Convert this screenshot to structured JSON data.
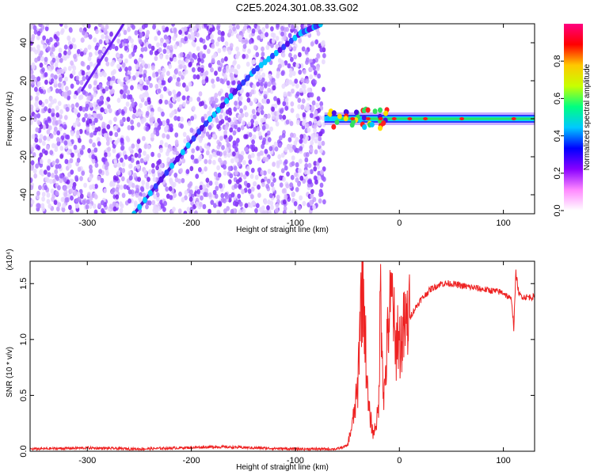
{
  "title": "C2E5.2024.301.08.33.G02",
  "chart_data": [
    {
      "type": "heatmap",
      "title": "C2E5.2024.301.08.33.G02",
      "xlabel": "Height of straight line (km)",
      "ylabel": "Frequency (Hz)",
      "xlim": [
        -355,
        130
      ],
      "ylim": [
        -50,
        50
      ],
      "x_ticks": [
        -300,
        -200,
        -100,
        0,
        100
      ],
      "y_ticks": [
        -40,
        -20,
        0,
        20,
        40
      ],
      "noise_region_x": [
        -355,
        -72
      ],
      "diagonal_trace_points": [
        [
          -255,
          -50
        ],
        [
          -190,
          -5
        ],
        [
          -140,
          25
        ],
        [
          -95,
          45
        ],
        [
          -75,
          50
        ]
      ],
      "diagonal_trace_2_points": [
        [
          -305,
          15
        ],
        [
          -265,
          50
        ]
      ],
      "stable_band": {
        "x_start": -72,
        "x_end": 130,
        "frequency": 0
      },
      "colorbar": {
        "label": "Normalized spectral amplitude",
        "range": [
          0,
          1
        ],
        "ticks": [
          "0.0",
          "0.2",
          "0.4",
          "0.6",
          "0.8"
        ],
        "colors": [
          "#ffffff",
          "#ff88ff",
          "#8800ff",
          "#0000ff",
          "#00c8ff",
          "#00ff80",
          "#c8ff00",
          "#ffc800",
          "#ff0000",
          "#ff0080"
        ]
      }
    },
    {
      "type": "line",
      "xlabel": "Height of straight line (km)",
      "ylabel": "SNR (10 * v/v)",
      "y_multiplier": "(x10⁴)",
      "xlim": [
        -355,
        130
      ],
      "ylim": [
        0,
        1.7
      ],
      "x_ticks": [
        -300,
        -200,
        -100,
        0,
        100
      ],
      "y_ticks": [
        "0.0",
        "0.5",
        "1.0",
        "1.5"
      ],
      "color": "#ee2222",
      "x": [
        -355,
        -300,
        -250,
        -175,
        -100,
        -60,
        -50,
        -45,
        -40,
        -38,
        -35,
        -32,
        -30,
        -25,
        -20,
        -18,
        -15,
        -12,
        -10,
        -6,
        -4,
        -2,
        0,
        5,
        10,
        20,
        30,
        40,
        50,
        60,
        80,
        100,
        108,
        110,
        112,
        115,
        120,
        130
      ],
      "values": [
        0.02,
        0.03,
        0.02,
        0.04,
        0.02,
        0.02,
        0.05,
        0.25,
        0.55,
        1.2,
        1.55,
        0.85,
        0.4,
        0.15,
        0.35,
        1.5,
        0.45,
        0.9,
        1.2,
        1.4,
        0.8,
        1.1,
        0.95,
        1.1,
        1.2,
        1.35,
        1.45,
        1.5,
        1.5,
        1.48,
        1.45,
        1.42,
        1.35,
        1.1,
        1.6,
        1.4,
        1.38,
        1.38
      ]
    }
  ]
}
